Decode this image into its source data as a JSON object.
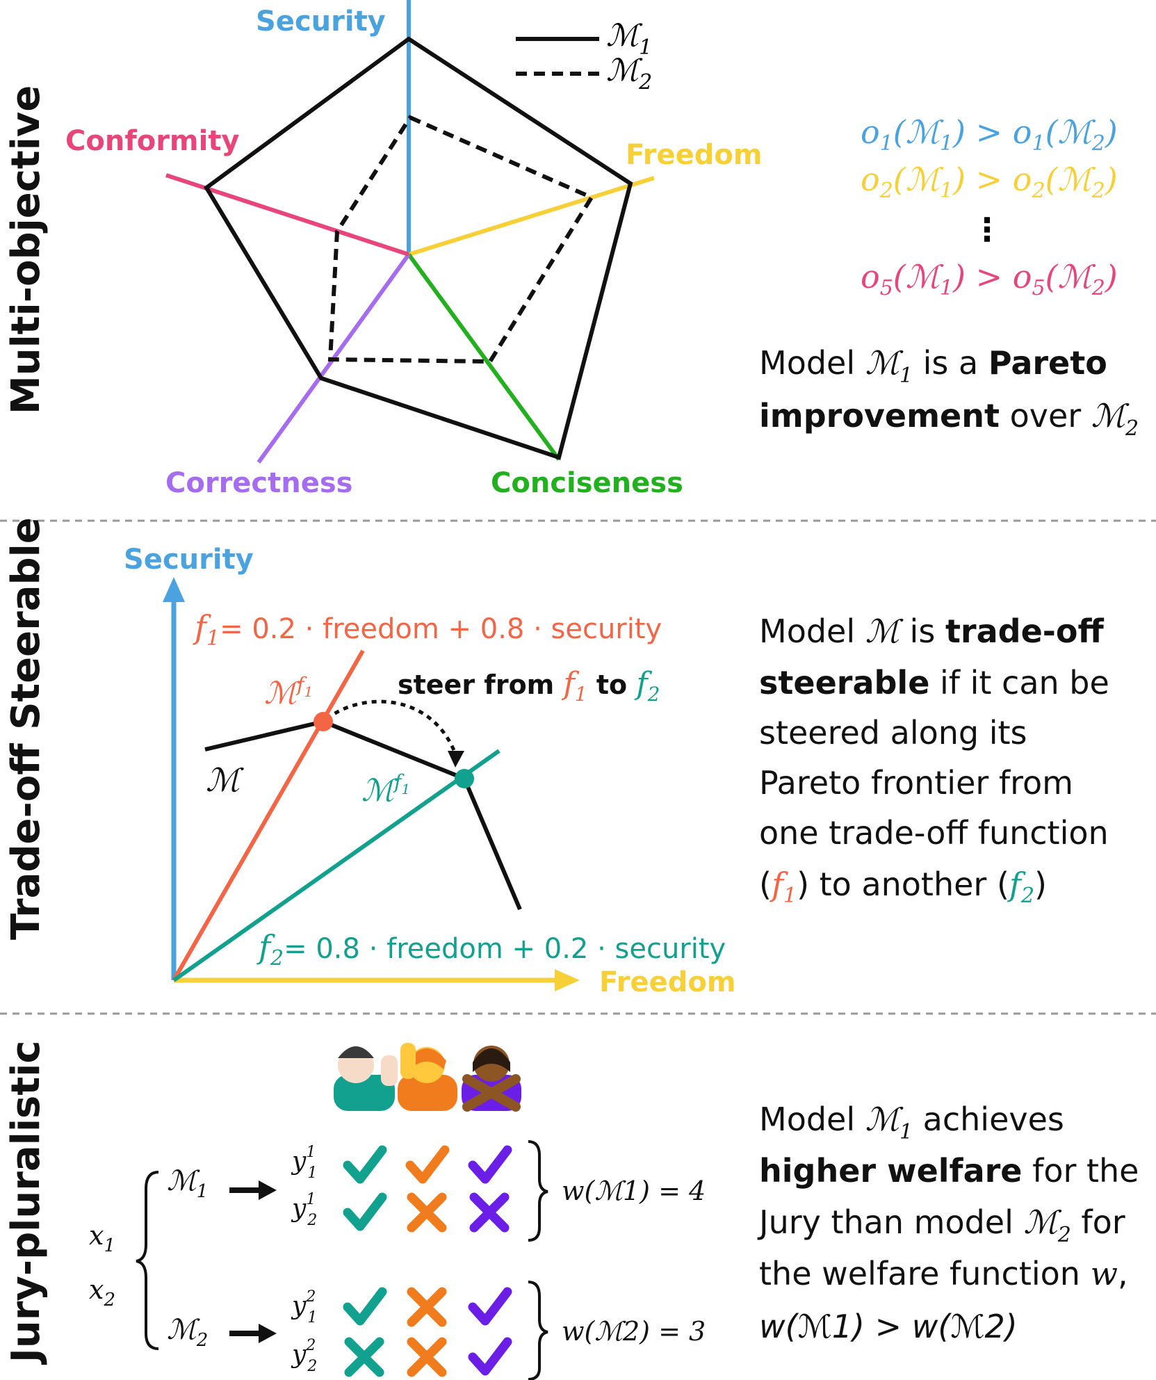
{
  "colors": {
    "security": "#4aa3df",
    "freedom": "#f7d038",
    "conformity": "#e8457a",
    "correctness": "#a56cf0",
    "conciseness": "#22b01e",
    "f1": "#f46545",
    "f2": "#12a08f",
    "juror1": "#12a08f",
    "juror2": "#f07c1e",
    "juror3": "#6a1ee6"
  },
  "sections": {
    "s1": "Multi-objective",
    "s2": "Trade-off Steerable",
    "s3": "Jury-pluralistic"
  },
  "radar": {
    "axes": [
      "Security",
      "Freedom",
      "Conciseness",
      "Correctness",
      "Conformity"
    ],
    "legend": {
      "m1_label": "ℳ",
      "m1_sub": "1",
      "m2_label": "ℳ",
      "m2_sub": "2"
    },
    "m1_values": [
      0.96,
      0.96,
      0.96,
      0.96,
      0.96
    ],
    "m2_values": [
      0.6,
      0.8,
      0.48,
      0.48,
      0.48
    ]
  },
  "objectives": [
    {
      "lhs": "o",
      "sub": "1",
      "text": "(ℳ1) > o1(ℳ2)"
    },
    {
      "lhs": "o",
      "sub": "2",
      "text": "(ℳ1) > o2(ℳ2)"
    },
    {
      "lhs": "⋮"
    },
    {
      "lhs": "o",
      "sub": "5",
      "text": "(ℳ1) > o5(ℳ2)"
    }
  ],
  "pareto_text": {
    "line1_a": "Model ",
    "m": "ℳ",
    "sub1": "1",
    "line1_b": " is a ",
    "line1_bold": "Pareto",
    "line2_bold": "improvement",
    "line2_a": " over ",
    "sub2": "2"
  },
  "steer": {
    "y_axis": "Security",
    "x_axis": "Freedom",
    "f1_label": "= 0.2 · freedom + 0.8 · security",
    "f2_label": "= 0.8 · freedom + 0.2 · security",
    "steer_label_a": "steer from ",
    "steer_label_b": " to ",
    "model_label": "ℳ",
    "f_symbol": "f",
    "sub1": "1",
    "sub2": "2"
  },
  "steer_text": {
    "l1a": "Model ",
    "l1b": " is ",
    "l1bold": "trade-off",
    "l2bold": "steerable",
    "l2b": " if it can be",
    "l3": "steered along its",
    "l4": "Pareto frontier from",
    "l5": "one trade-off function",
    "l6a": "(",
    "l6b": ") to another (",
    "l6c": ")"
  },
  "jury": {
    "inputs": [
      "x1",
      "x2"
    ],
    "models": [
      "ℳ1",
      "ℳ2"
    ],
    "outputs_m1": [
      "y",
      "y"
    ],
    "welfare_m1": "w(ℳ1) = 4",
    "welfare_m2": "w(ℳ2) = 3",
    "votes": [
      [
        "check",
        "check",
        "check"
      ],
      [
        "check",
        "cross",
        "cross"
      ],
      [
        "check",
        "cross",
        "check"
      ],
      [
        "cross",
        "cross",
        "check"
      ]
    ]
  },
  "jury_text": {
    "l1a": "Model ",
    "l1b": " achieves",
    "l2bold": "higher welfare",
    "l2b": " for the",
    "l3a": "Jury than model ",
    "l3b": " for",
    "l4a": "the welfare function ",
    "l4b": "w",
    "l5": "w(ℳ1) > w(ℳ2)"
  }
}
